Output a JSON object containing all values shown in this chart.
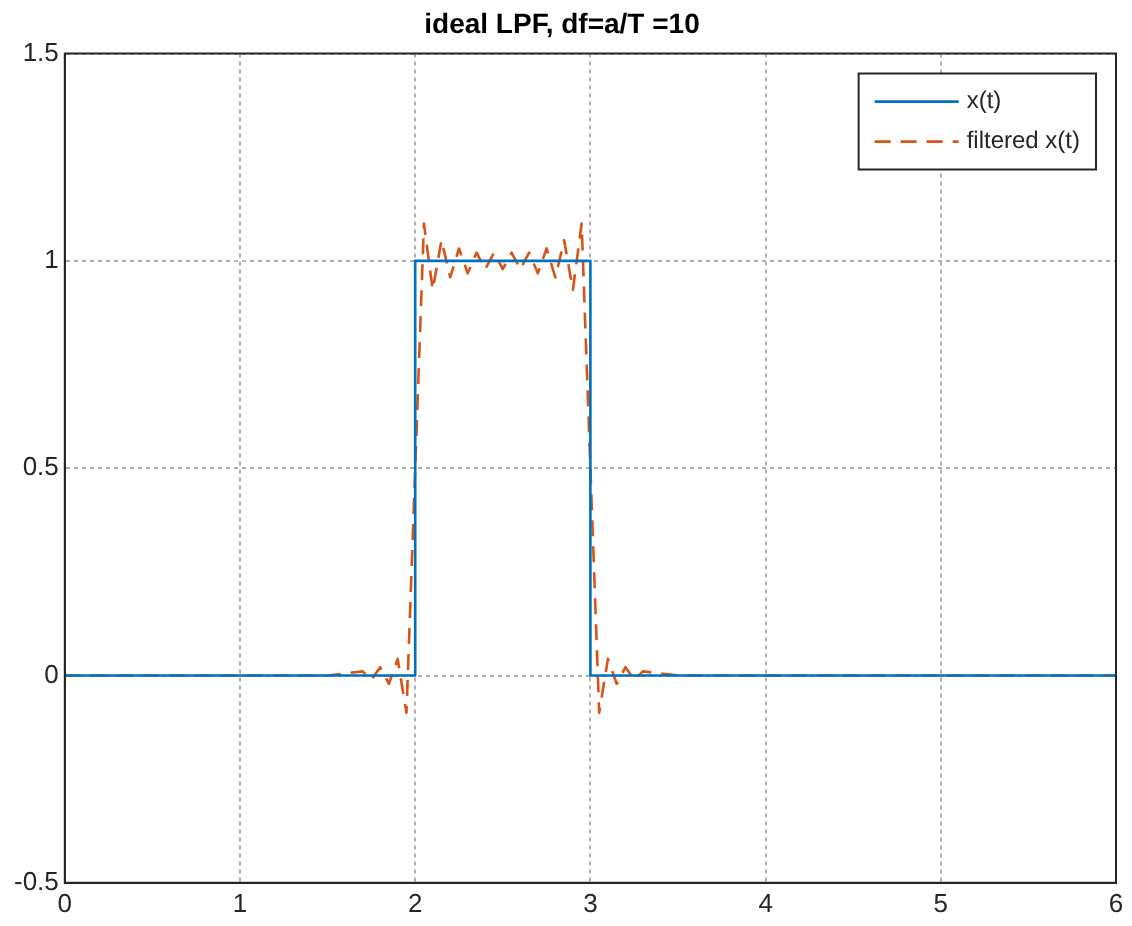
{
  "chart_data": {
    "type": "line",
    "title": "ideal LPF, df=a/T =10",
    "series": [
      {
        "name": "x(t)",
        "color": "#0072bd",
        "line_style": "solid",
        "x": [
          0,
          2,
          2,
          3,
          3,
          6
        ],
        "values": [
          0,
          0,
          1,
          1,
          0,
          0
        ]
      },
      {
        "name": "filtered x(t)",
        "color": "#d95319",
        "line_style": "dashed",
        "x": [
          0,
          1.5,
          1.7,
          1.75,
          1.8,
          1.85,
          1.9,
          1.95,
          2,
          2.05,
          2.1,
          2.15,
          2.2,
          2.25,
          2.3,
          2.35,
          2.4,
          2.45,
          2.5,
          2.55,
          2.6,
          2.65,
          2.7,
          2.75,
          2.8,
          2.85,
          2.9,
          2.95,
          3,
          3.05,
          3.1,
          3.15,
          3.2,
          3.25,
          3.3,
          3.5,
          6
        ],
        "values": [
          0,
          0,
          0.01,
          -0.01,
          0.02,
          -0.02,
          0.04,
          -0.09,
          0.5,
          1.09,
          0.93,
          1.05,
          0.96,
          1.03,
          0.97,
          1.02,
          0.98,
          1.02,
          0.98,
          1.02,
          0.98,
          1.02,
          0.97,
          1.03,
          0.96,
          1.05,
          0.93,
          1.09,
          0.5,
          -0.09,
          0.04,
          -0.02,
          0.02,
          -0.01,
          0.01,
          0,
          0
        ]
      }
    ],
    "xlim": [
      0,
      6
    ],
    "xticks": [
      0,
      1,
      2,
      3,
      4,
      5,
      6
    ],
    "ylim": [
      -0.5,
      1.5
    ],
    "yticks": [
      -0.5,
      0,
      0.5,
      1,
      1.5
    ],
    "grid": true,
    "legend": "top right",
    "marker": "none"
  }
}
